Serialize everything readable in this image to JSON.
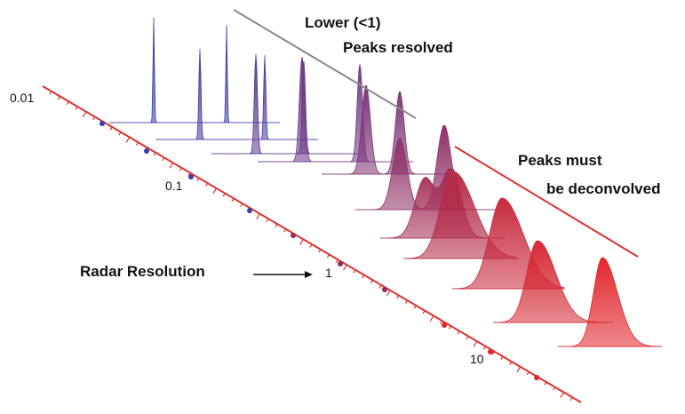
{
  "diagram": {
    "annotations": {
      "lower_heading": "Lower (<1)",
      "lower_text": "Peaks resolved",
      "higher_line1": "Peaks must",
      "higher_line2": "be deconvolved",
      "axis_name": "Radar Resolution"
    },
    "axis_tick_labels": [
      "0.01",
      "0.1",
      "1",
      "10"
    ],
    "colors": {
      "low_resolution_peak": "#3a3fa0",
      "mid_resolution_peak": "#8a2f5e",
      "high_resolution_peak": "#e1262c",
      "axis": "#e0302f",
      "divider_low": "#8a8a8a",
      "divider_high": "#e0302f"
    },
    "peak_profiles": [
      {
        "shape": "double",
        "width": 0.8,
        "separation": 42,
        "color": "#3b3fa6"
      },
      {
        "shape": "double",
        "width": 1.2,
        "separation": 42,
        "color": "#4a3f9e"
      },
      {
        "shape": "double",
        "width": 1.8,
        "separation": 42,
        "color": "#5a3c92"
      },
      {
        "shape": "double",
        "width": 3.0,
        "separation": 42,
        "color": "#6e3a86"
      },
      {
        "shape": "double",
        "width": 5.0,
        "separation": 42,
        "color": "#7e3576"
      },
      {
        "shape": "double",
        "width": 8.0,
        "separation": 42,
        "color": "#8f3268"
      },
      {
        "shape": "double",
        "width": 11.0,
        "separation": 42,
        "color": "#a22f58"
      },
      {
        "shape": "single",
        "width": 14.0,
        "color": "#b52b48"
      },
      {
        "shape": "single",
        "width": 14.0,
        "color": "#c82a3c"
      },
      {
        "shape": "single",
        "width": 12.0,
        "color": "#d52834"
      },
      {
        "shape": "single",
        "width": 10.0,
        "color": "#e1262c"
      }
    ]
  }
}
